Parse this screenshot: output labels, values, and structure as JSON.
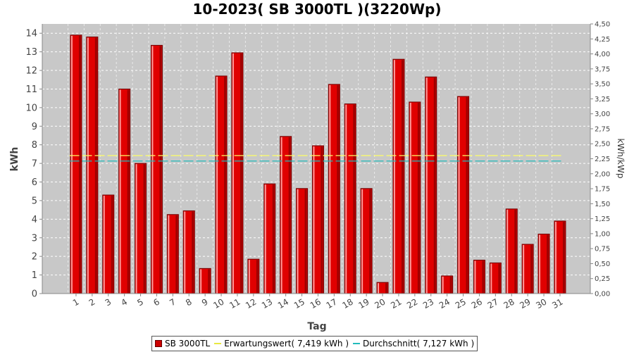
{
  "chart_data": {
    "type": "bar",
    "title": "10-2023( SB 3000TL )(3220Wp)",
    "xlabel": "Tag",
    "ylabel": "kWh",
    "ylabel_right": "kWh/kWp",
    "ylim": [
      0,
      14.5
    ],
    "ylim_right": [
      0,
      4.5
    ],
    "y_ticks": [
      "0",
      "1",
      "2",
      "3",
      "4",
      "5",
      "6",
      "7",
      "8",
      "9",
      "10",
      "11",
      "12",
      "13",
      "14"
    ],
    "y_ticks_right": [
      "0,00",
      "0,25",
      "0,50",
      "0,75",
      "1,00",
      "1,25",
      "1,50",
      "1,75",
      "2,00",
      "2,25",
      "2,50",
      "2,75",
      "3,00",
      "3,25",
      "3,50",
      "3,75",
      "4,00",
      "4,25",
      "4,50"
    ],
    "categories": [
      "1",
      "2",
      "3",
      "4",
      "5",
      "6",
      "7",
      "8",
      "9",
      "10",
      "11",
      "12",
      "13",
      "14",
      "15",
      "16",
      "17",
      "18",
      "19",
      "20",
      "21",
      "22",
      "23",
      "24",
      "25",
      "26",
      "27",
      "28",
      "29",
      "30",
      "31"
    ],
    "series": [
      {
        "name": "SB 3000TL",
        "color": "#e00000",
        "values": [
          13.9,
          13.8,
          5.3,
          11.0,
          7.0,
          13.35,
          4.25,
          4.45,
          1.35,
          11.7,
          12.95,
          1.85,
          5.9,
          8.45,
          5.65,
          7.95,
          11.25,
          10.2,
          5.65,
          0.6,
          12.6,
          10.3,
          11.65,
          0.95,
          10.6,
          1.8,
          1.65,
          4.55,
          2.65,
          3.2,
          3.9
        ]
      }
    ],
    "reference_lines": [
      {
        "name": "Erwartungswert( 7,419 kWh )",
        "value": 7.419,
        "color": "#ffff66"
      },
      {
        "name": "Durchschnitt( 7,127 kWh )",
        "value": 7.127,
        "color": "#22bbbb"
      }
    ],
    "grid": true,
    "legend_position": "bottom"
  }
}
